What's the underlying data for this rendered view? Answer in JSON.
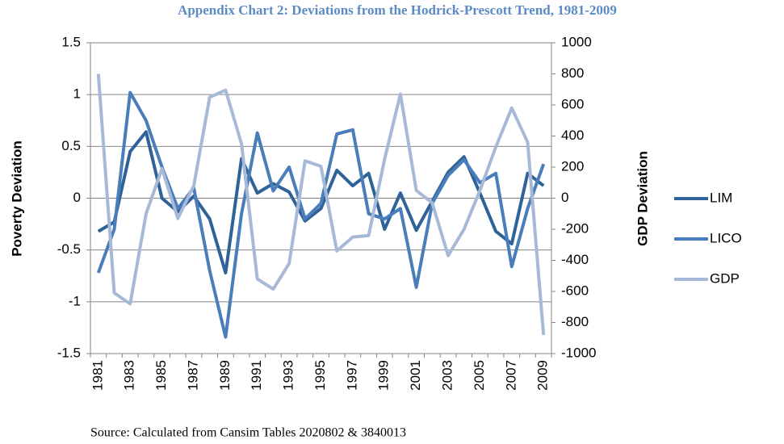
{
  "chart_data": {
    "type": "line",
    "title": "Appendix Chart 2: Deviations from the Hodrick-Prescott Trend, 1981-2009",
    "y_label": "Poverty Deviation",
    "y2_label": "GDP Deviation",
    "source": "Source: Calculated from Cansim Tables 2020802 & 3840013",
    "categories": [
      "1981",
      null,
      "1983",
      null,
      "1985",
      null,
      "1987",
      null,
      "1989",
      null,
      "1991",
      null,
      "1993",
      null,
      "1995",
      null,
      "1997",
      null,
      "1999",
      null,
      "2001",
      null,
      "2003",
      null,
      "2005",
      null,
      "2007",
      null,
      "2009"
    ],
    "series": [
      {
        "name": "LIM",
        "color": "#2f6398",
        "values": [
          -0.32,
          -0.23,
          0.45,
          0.64,
          0.0,
          -0.13,
          0.02,
          -0.2,
          -0.72,
          0.38,
          0.05,
          0.14,
          0.06,
          -0.22,
          -0.1,
          0.27,
          0.12,
          0.24,
          -0.3,
          0.05,
          -0.31,
          -0.03,
          0.25,
          0.4,
          0.05,
          -0.32,
          -0.44,
          0.24,
          0.12
        ]
      },
      {
        "name": "LICO",
        "color": "#4a7ebb",
        "values": [
          -0.72,
          -0.3,
          1.02,
          0.75,
          0.3,
          -0.1,
          0.1,
          -0.7,
          -1.34,
          -0.15,
          0.63,
          0.07,
          0.3,
          -0.2,
          -0.05,
          0.62,
          0.66,
          -0.15,
          -0.2,
          -0.1,
          -0.86,
          -0.05,
          0.22,
          0.37,
          0.15,
          0.24,
          -0.66,
          -0.1,
          0.33
        ]
      },
      {
        "name": "GDP",
        "color": "#a7b9d6",
        "axis": "y2",
        "values": [
          800,
          -610,
          -680,
          -100,
          190,
          -130,
          80,
          650,
          695,
          350,
          -520,
          -585,
          -420,
          240,
          205,
          -340,
          -250,
          -240,
          250,
          670,
          50,
          -30,
          -370,
          -200,
          50,
          330,
          580,
          360,
          -880
        ]
      }
    ],
    "ylim": [
      -1.5,
      1.5
    ],
    "yticks": [
      -1.5,
      -1,
      -0.5,
      0,
      0.5,
      1,
      1.5
    ],
    "y2lim": [
      -1000,
      1000
    ],
    "y2ticks": [
      -1000,
      -800,
      -600,
      -400,
      -200,
      0,
      200,
      400,
      600,
      800,
      1000
    ],
    "grid": true,
    "legend": "right"
  }
}
